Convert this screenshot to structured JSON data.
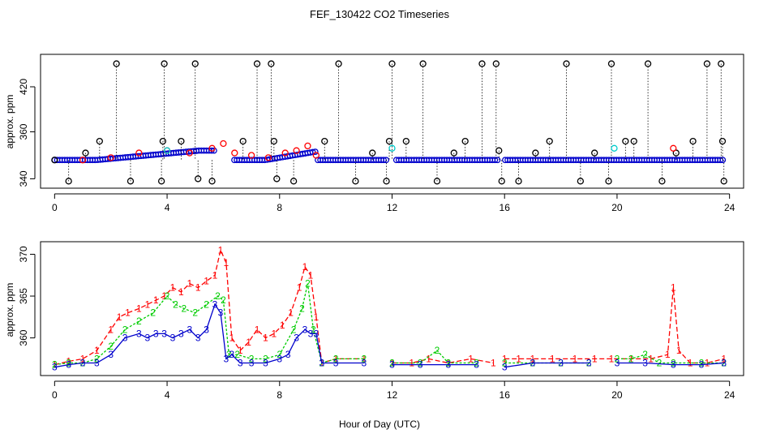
{
  "chart_data": [
    {
      "type": "scatter",
      "title": "FEF_130422  CO2 Timeseries",
      "ylabel": "approx. ppm",
      "xlabel": "",
      "xlim": [
        -0.5,
        24.5
      ],
      "ylim": [
        336,
        393
      ],
      "xticks": [
        "0",
        "4",
        "8",
        "12",
        "16",
        "20",
        "24"
      ],
      "yticks": [
        "340",
        "360",
        "420"
      ],
      "ytick_values": [
        340,
        360,
        420
      ],
      "note_axis": "broken y-axis: value 420 printed at upper position, marker rows clipped",
      "colors": {
        "black": "#000000",
        "red": "#ff0000",
        "green": "#00cc00",
        "blue": "#0000cc",
        "cyan": "#00cccc"
      },
      "series": [
        {
          "color": "black",
          "x": [
            0.0,
            0.5,
            1.1,
            1.6,
            2.2,
            2.7,
            3.8,
            3.85,
            3.9,
            4.5,
            5.0,
            5.1,
            5.6,
            6.7,
            7.2,
            7.7,
            7.8,
            7.9,
            8.5,
            9.6,
            10.1,
            10.7,
            11.3,
            11.8,
            11.9,
            12.0,
            12.5,
            13.1,
            13.6,
            14.2,
            14.6,
            15.2,
            15.7,
            15.8,
            15.9,
            16.5,
            17.1,
            17.6,
            18.2,
            18.7,
            19.2,
            19.7,
            19.8,
            20.3,
            20.6,
            21.1,
            21.6,
            22.1,
            22.7,
            23.2,
            23.7,
            23.75,
            23.8
          ],
          "y": [
            348,
            339,
            351,
            356,
            389,
            339,
            339,
            356,
            389,
            356,
            389,
            340,
            339,
            356,
            389,
            389,
            356,
            340,
            339,
            356,
            389,
            339,
            351,
            339,
            356,
            389,
            356,
            389,
            339,
            351,
            356,
            389,
            389,
            352,
            339,
            339,
            351,
            356,
            389,
            339,
            351,
            339,
            389,
            356,
            356,
            389,
            339,
            351,
            356,
            389,
            389,
            356,
            339
          ]
        },
        {
          "color": "red",
          "x": [
            1.0,
            2.0,
            3.0,
            4.0,
            4.8,
            5.6,
            6.0,
            6.4,
            7.0,
            7.6,
            8.2,
            8.6,
            9.0,
            9.3,
            22.0
          ],
          "y": [
            348,
            349,
            351,
            352,
            351,
            353,
            355,
            351,
            350,
            349,
            351,
            352,
            354,
            350,
            353
          ]
        },
        {
          "color": "cyan",
          "x": [
            4.0,
            12.0,
            19.9
          ],
          "y": [
            352,
            353,
            353
          ]
        }
      ],
      "baseline_ppm": 348
    },
    {
      "type": "line",
      "title": "",
      "xlabel": "Hour of Day (UTC)",
      "ylabel": "approx. ppm",
      "xlim": [
        -0.5,
        24.5
      ],
      "ylim": [
        355.5,
        371.5
      ],
      "xticks": [
        "0",
        "4",
        "8",
        "12",
        "16",
        "20",
        "24"
      ],
      "yticks": [
        "360",
        "365",
        "370"
      ],
      "ytick_values": [
        360,
        365,
        370
      ],
      "series": [
        {
          "marker": "1",
          "color": "#ff0000",
          "x": [
            0.0,
            0.5,
            1.0,
            1.5,
            2.0,
            2.3,
            2.6,
            3.0,
            3.3,
            3.6,
            3.9,
            4.2,
            4.5,
            4.8,
            5.1,
            5.4,
            5.7,
            5.9,
            6.1,
            6.3,
            6.6,
            6.9,
            7.2,
            7.5,
            7.8,
            8.1,
            8.4,
            8.7,
            8.9,
            9.1,
            9.3,
            9.5,
            10.0,
            11.0,
            12.0,
            12.7,
            13.3,
            14.0,
            14.8,
            15.6,
            16.0,
            16.5,
            17.0,
            17.7,
            18.5,
            19.2,
            19.8,
            20.5,
            21.2,
            21.8,
            22.0,
            22.2,
            22.6,
            23.2,
            23.8
          ],
          "y": [
            356.8,
            357.2,
            357.5,
            358.5,
            361.0,
            362.5,
            363.0,
            363.5,
            364.0,
            364.5,
            365.0,
            366.0,
            365.5,
            366.5,
            366.0,
            366.8,
            367.5,
            370.5,
            369.0,
            360.0,
            358.5,
            359.5,
            361.0,
            360.0,
            360.5,
            361.5,
            363.0,
            366.0,
            368.5,
            367.5,
            362.5,
            357.0,
            357.5,
            357.5,
            357.0,
            357.0,
            357.5,
            357.0,
            357.5,
            357.0,
            357.5,
            357.5,
            357.5,
            357.5,
            357.5,
            357.5,
            357.5,
            357.5,
            357.5,
            358.0,
            366.0,
            358.5,
            357.0,
            357.0,
            357.5
          ]
        },
        {
          "marker": "2",
          "color": "#00cc00",
          "x": [
            0.0,
            0.5,
            1.0,
            1.5,
            2.0,
            2.5,
            3.0,
            3.5,
            4.0,
            4.3,
            4.6,
            5.0,
            5.4,
            5.8,
            6.0,
            6.2,
            6.5,
            7.0,
            7.5,
            8.0,
            8.5,
            8.8,
            9.0,
            9.2,
            9.5,
            10.0,
            11.0,
            12.0,
            13.0,
            13.6,
            14.0,
            15.0,
            16.0,
            17.0,
            18.0,
            19.0,
            20.0,
            20.5,
            21.0,
            21.5,
            22.0,
            23.0,
            23.8
          ],
          "y": [
            356.8,
            357.0,
            357.0,
            357.5,
            359.0,
            361.0,
            362.0,
            363.0,
            365.0,
            364.0,
            363.5,
            363.0,
            364.0,
            365.0,
            364.5,
            358.0,
            358.0,
            357.5,
            357.5,
            358.0,
            361.0,
            363.5,
            366.5,
            361.0,
            357.0,
            357.5,
            357.5,
            357.0,
            357.0,
            358.5,
            357.0,
            357.0,
            357.0,
            357.0,
            357.0,
            357.0,
            357.5,
            357.5,
            358.0,
            357.0,
            357.0,
            357.0,
            357.0
          ]
        },
        {
          "marker": "3",
          "color": "#0000cc",
          "x": [
            0.0,
            0.5,
            1.0,
            1.5,
            2.0,
            2.5,
            3.0,
            3.3,
            3.6,
            3.9,
            4.2,
            4.5,
            4.8,
            5.1,
            5.4,
            5.7,
            5.9,
            6.1,
            6.3,
            6.6,
            7.0,
            7.5,
            8.0,
            8.3,
            8.6,
            8.9,
            9.1,
            9.3,
            9.5,
            10.0,
            11.0,
            12.0,
            13.0,
            14.0,
            15.0,
            16.0,
            17.0,
            18.0,
            19.0,
            20.0,
            21.0,
            22.0,
            23.0,
            23.8
          ],
          "y": [
            356.5,
            356.8,
            357.0,
            357.0,
            358.0,
            360.0,
            360.5,
            360.0,
            360.5,
            360.5,
            360.0,
            360.5,
            361.0,
            360.0,
            361.0,
            364.0,
            363.0,
            357.5,
            358.0,
            357.0,
            357.0,
            357.0,
            357.5,
            358.0,
            360.0,
            361.0,
            360.5,
            360.5,
            357.0,
            357.0,
            357.0,
            356.8,
            356.8,
            356.8,
            356.8,
            356.5,
            357.0,
            357.0,
            357.0,
            357.0,
            357.0,
            356.8,
            356.8,
            357.0
          ]
        }
      ]
    }
  ]
}
